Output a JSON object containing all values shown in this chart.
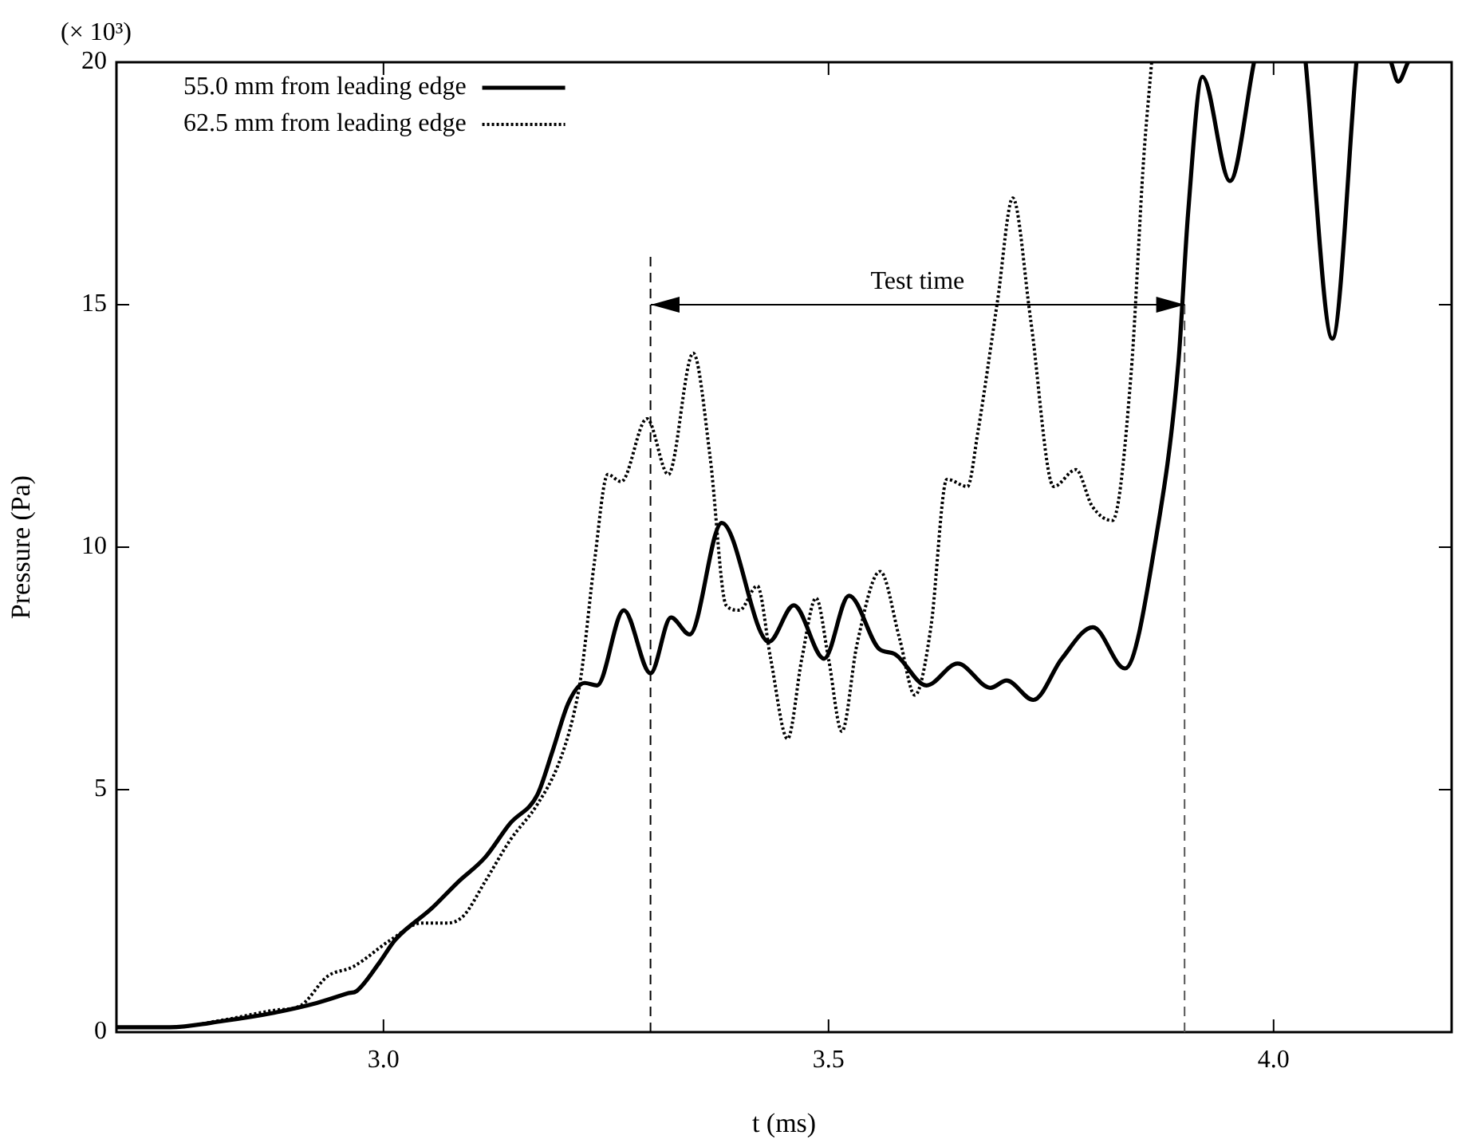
{
  "chart_data": {
    "type": "line",
    "xlabel": "t (ms)",
    "ylabel": "Pressure (Pa)",
    "xlim": [
      2.7,
      4.2
    ],
    "xticks": [
      {
        "value": 3,
        "label": "3.0"
      },
      {
        "value": 3.5,
        "label": "3.5"
      },
      {
        "value": 4,
        "label": "4.0"
      }
    ],
    "ylim": [
      0,
      20
    ],
    "yticks": [
      0,
      5,
      10,
      15,
      20
    ],
    "grid": false,
    "legend": "top left",
    "marker": "none",
    "annotations": [
      "(× 10³)",
      "Test time"
    ],
    "ref_lines": [
      {
        "axis": "x",
        "value": 3.3,
        "color": "#000000",
        "line_style": "dashed"
      },
      {
        "axis": "x",
        "value": 3.9,
        "color": "#555555",
        "line_style": "dashed"
      }
    ],
    "series": [
      {
        "name": "55.0 mm from leading edge",
        "color": "#000000",
        "line_style": "solid",
        "x": [
          2.7,
          2.76,
          2.82,
          2.877,
          2.925,
          2.96,
          2.97,
          2.996,
          3.013,
          3.054,
          3.084,
          3.114,
          3.142,
          3.173,
          3.19,
          3.208,
          3.226,
          3.24,
          3.27,
          3.3,
          3.323,
          3.344,
          3.38,
          3.433,
          3.461,
          3.495,
          3.523,
          3.557,
          3.574,
          3.61,
          3.645,
          3.682,
          3.7,
          3.73,
          3.762,
          3.797,
          3.833,
          3.868,
          3.893,
          3.904,
          3.92,
          3.951,
          3.978,
          4.0,
          4.036,
          4.066,
          4.093,
          4.11,
          4.132,
          4.14,
          4.151
        ],
        "values": [
          0.1,
          0.1,
          0.23,
          0.4,
          0.6,
          0.8,
          0.85,
          1.45,
          1.9,
          2.55,
          3.1,
          3.6,
          4.3,
          4.9,
          5.8,
          6.8,
          7.2,
          7.15,
          8.7,
          7.4,
          8.55,
          8.2,
          10.5,
          8.05,
          8.8,
          7.7,
          9.0,
          7.9,
          7.8,
          7.15,
          7.6,
          7.1,
          7.25,
          6.85,
          7.7,
          8.35,
          7.5,
          10.2,
          13.8,
          16.9,
          19.7,
          17.55,
          20,
          null,
          20,
          14.3,
          20,
          null,
          20,
          19.6,
          20
        ]
      },
      {
        "name": "62.5 mm from leading edge",
        "color": "#000000",
        "line_style": "dotted",
        "x": [
          2.7,
          2.76,
          2.82,
          2.877,
          2.907,
          2.937,
          2.966,
          3.008,
          3.043,
          3.072,
          3.09,
          3.114,
          3.142,
          3.173,
          3.196,
          3.213,
          3.222,
          3.237,
          3.252,
          3.267,
          3.296,
          3.32,
          3.348,
          3.367,
          3.385,
          3.4,
          3.42,
          3.435,
          3.454,
          3.47,
          3.486,
          3.5,
          3.515,
          3.532,
          3.558,
          3.58,
          3.597,
          3.615,
          3.633,
          3.656,
          3.668,
          3.69,
          3.707,
          3.727,
          3.753,
          3.778,
          3.796,
          3.819,
          3.84,
          3.854,
          3.863
        ],
        "values": [
          0.1,
          0.1,
          0.25,
          0.45,
          0.55,
          1.15,
          1.35,
          1.9,
          2.25,
          2.25,
          2.4,
          3.1,
          3.95,
          4.7,
          5.5,
          6.5,
          7.35,
          9.7,
          11.5,
          11.35,
          12.65,
          11.5,
          14.0,
          11.85,
          8.8,
          8.7,
          9.2,
          7.7,
          6.05,
          7.7,
          8.95,
          7.7,
          6.2,
          8.0,
          9.5,
          8.1,
          6.95,
          8.35,
          11.4,
          11.25,
          12.4,
          15.1,
          17.2,
          14.7,
          11.25,
          11.6,
          10.85,
          10.55,
          13.6,
          18.0,
          20
        ]
      }
    ]
  }
}
